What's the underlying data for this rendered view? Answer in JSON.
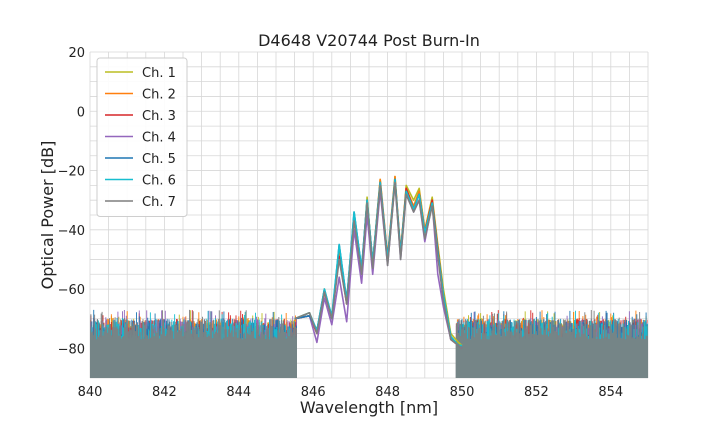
{
  "chart_data": {
    "type": "line",
    "title": "D4648 V20744 Post Burn-In",
    "xlabel": "Wavelength [nm]",
    "ylabel": "Optical Power [dB]",
    "xlim": [
      840,
      855
    ],
    "ylim": [
      -90,
      20
    ],
    "xticks": [
      840,
      842,
      844,
      846,
      848,
      850,
      852,
      854
    ],
    "yticks": [
      20,
      0,
      -20,
      -40,
      -60,
      -80
    ],
    "grid": true,
    "legend_position": "top-left",
    "noise_floor_db": -80,
    "series": [
      {
        "name": "Ch. 1",
        "color": "#bcbd22",
        "x": [
          845.5,
          845.9,
          846.1,
          846.3,
          846.5,
          846.7,
          846.9,
          847.1,
          847.3,
          847.45,
          847.6,
          847.8,
          848.0,
          848.2,
          848.35,
          848.5,
          848.7,
          848.85,
          849.0,
          849.2,
          849.35,
          849.5,
          849.7,
          849.9,
          850.0
        ],
        "y": [
          -70,
          -68,
          -75,
          -60,
          -70,
          -47,
          -65,
          -35,
          -55,
          -29,
          -52,
          -23,
          -50,
          -22,
          -48,
          -25,
          -30,
          -26,
          -40,
          -29,
          -45,
          -60,
          -75,
          -78,
          -79
        ]
      },
      {
        "name": "Ch. 2",
        "color": "#ff7f0e",
        "x": [
          845.5,
          845.9,
          846.1,
          846.3,
          846.5,
          846.7,
          846.9,
          847.1,
          847.3,
          847.45,
          847.6,
          847.8,
          848.0,
          848.2,
          848.35,
          848.5,
          848.7,
          848.85,
          849.0,
          849.2,
          849.35,
          849.5,
          849.7,
          849.9,
          850.0
        ],
        "y": [
          -70,
          -69,
          -74,
          -61,
          -69,
          -48,
          -64,
          -36,
          -54,
          -30,
          -51,
          -23,
          -49,
          -22,
          -47,
          -26,
          -32,
          -27,
          -40,
          -30,
          -46,
          -62,
          -76,
          -79,
          -79
        ]
      },
      {
        "name": "Ch. 3",
        "color": "#d62728",
        "x": [
          845.5,
          845.9,
          846.1,
          846.3,
          846.5,
          846.7,
          846.9,
          847.1,
          847.3,
          847.45,
          847.6,
          847.8,
          848.0,
          848.2,
          848.35,
          848.5,
          848.7,
          848.85,
          849.0,
          849.2,
          849.35,
          849.5,
          849.7,
          849.9,
          850.0
        ],
        "y": [
          -70,
          -69,
          -75,
          -61,
          -70,
          -49,
          -65,
          -36,
          -54,
          -31,
          -52,
          -24,
          -50,
          -23,
          -48,
          -26,
          -33,
          -28,
          -41,
          -30,
          -47,
          -63,
          -77,
          -79,
          -80
        ]
      },
      {
        "name": "Ch. 4",
        "color": "#9467bd",
        "x": [
          845.5,
          845.9,
          846.1,
          846.3,
          846.5,
          846.7,
          846.9,
          847.1,
          847.3,
          847.45,
          847.6,
          847.8,
          848.0,
          848.2,
          848.35,
          848.5,
          848.7,
          848.85,
          849.0,
          849.2,
          849.35,
          849.5,
          849.7,
          849.9,
          850.0
        ],
        "y": [
          -70,
          -69,
          -78,
          -63,
          -72,
          -56,
          -71,
          -40,
          -58,
          -35,
          -55,
          -27,
          -52,
          -24,
          -50,
          -28,
          -34,
          -30,
          -44,
          -31,
          -55,
          -66,
          -77,
          -79,
          -80
        ]
      },
      {
        "name": "Ch. 5",
        "color": "#1f77b4",
        "x": [
          845.5,
          845.9,
          846.1,
          846.3,
          846.5,
          846.7,
          846.9,
          847.1,
          847.3,
          847.45,
          847.6,
          847.8,
          848.0,
          848.2,
          848.35,
          848.5,
          848.7,
          848.85,
          849.0,
          849.2,
          849.35,
          849.5,
          849.7,
          849.9,
          850.0
        ],
        "y": [
          -70,
          -69,
          -74,
          -60,
          -70,
          -45,
          -64,
          -34,
          -53,
          -30,
          -51,
          -24,
          -50,
          -23,
          -48,
          -27,
          -33,
          -28,
          -41,
          -31,
          -47,
          -62,
          -76,
          -79,
          -79
        ]
      },
      {
        "name": "Ch. 6",
        "color": "#17becf",
        "x": [
          845.5,
          845.9,
          846.1,
          846.3,
          846.5,
          846.7,
          846.9,
          847.1,
          847.3,
          847.45,
          847.6,
          847.8,
          848.0,
          848.2,
          848.35,
          848.5,
          848.7,
          848.85,
          849.0,
          849.2,
          849.35,
          849.5,
          849.7,
          849.9,
          850.0
        ],
        "y": [
          -70,
          -68,
          -74,
          -60,
          -69,
          -45,
          -64,
          -34,
          -53,
          -30,
          -51,
          -24,
          -50,
          -23,
          -48,
          -27,
          -33,
          -28,
          -41,
          -31,
          -48,
          -62,
          -76,
          -79,
          -79
        ]
      },
      {
        "name": "Ch. 7",
        "color": "#7f7f7f",
        "x": [
          845.5,
          845.9,
          846.1,
          846.3,
          846.5,
          846.7,
          846.9,
          847.1,
          847.3,
          847.45,
          847.6,
          847.8,
          848.0,
          848.2,
          848.35,
          848.5,
          848.7,
          848.85,
          849.0,
          849.2,
          849.35,
          849.5,
          849.7,
          849.9,
          850.0
        ],
        "y": [
          -70,
          -68,
          -75,
          -61,
          -70,
          -50,
          -65,
          -37,
          -55,
          -31,
          -53,
          -25,
          -52,
          -24,
          -50,
          -28,
          -34,
          -30,
          -43,
          -32,
          -49,
          -64,
          -77,
          -79,
          -80
        ]
      }
    ]
  }
}
